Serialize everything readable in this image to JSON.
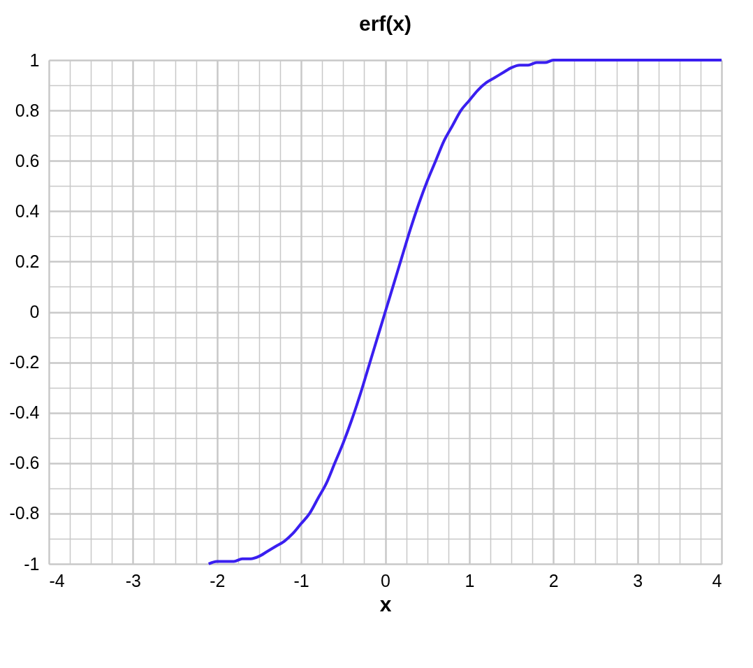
{
  "chart_data": {
    "type": "line",
    "title": "erf(x)",
    "xlabel": "x",
    "x": [
      -2.1,
      -2.0,
      -1.9,
      -1.8,
      -1.7,
      -1.6,
      -1.5,
      -1.4,
      -1.3,
      -1.2,
      -1.1,
      -1.0,
      -0.9,
      -0.8,
      -0.7,
      -0.6,
      -0.5,
      -0.4,
      -0.3,
      -0.2,
      -0.1,
      0,
      0.1,
      0.2,
      0.3,
      0.4,
      0.5,
      0.6,
      0.7,
      0.8,
      0.9,
      1.0,
      1.1,
      1.2,
      1.3,
      1.4,
      1.5,
      1.6,
      1.7,
      1.8,
      1.9,
      2.0,
      2.2,
      2.4,
      2.6,
      3.0,
      3.5,
      4.0
    ],
    "series": [
      {
        "color": "#3a1ff0",
        "values": [
          -1.0,
          -0.99,
          -0.99,
          -0.99,
          -0.98,
          -0.98,
          -0.97,
          -0.95,
          -0.93,
          -0.91,
          -0.88,
          -0.84,
          -0.8,
          -0.74,
          -0.68,
          -0.6,
          -0.52,
          -0.43,
          -0.33,
          -0.22,
          -0.11,
          0,
          0.11,
          0.22,
          0.33,
          0.43,
          0.52,
          0.6,
          0.68,
          0.74,
          0.8,
          0.84,
          0.88,
          0.91,
          0.93,
          0.95,
          0.97,
          0.98,
          0.98,
          0.99,
          0.99,
          1.0,
          1.0,
          1.0,
          1.0,
          1.0,
          1.0,
          1.0
        ]
      }
    ],
    "xlim": [
      -4,
      4
    ],
    "xticks": [
      -4,
      {
        "value": -3.75,
        "label": null
      },
      {
        "value": -3.5,
        "label": null
      },
      {
        "value": -3.25,
        "label": null
      },
      -3,
      {
        "value": -2.75,
        "label": null
      },
      {
        "value": -2.5,
        "label": null
      },
      {
        "value": -2.25,
        "label": null
      },
      -2,
      {
        "value": -1.75,
        "label": null
      },
      {
        "value": -1.5,
        "label": null
      },
      {
        "value": -1.25,
        "label": null
      },
      -1,
      {
        "value": -0.75,
        "label": null
      },
      {
        "value": -0.5,
        "label": null
      },
      {
        "value": -0.25,
        "label": null
      },
      0,
      {
        "value": 0.25,
        "label": null
      },
      {
        "value": 0.5,
        "label": null
      },
      {
        "value": 0.75,
        "label": null
      },
      1,
      {
        "value": 1.25,
        "label": null
      },
      {
        "value": 1.5,
        "label": null
      },
      {
        "value": 1.75,
        "label": null
      },
      2,
      {
        "value": 2.25,
        "label": null
      },
      {
        "value": 2.5,
        "label": null
      },
      {
        "value": 2.75,
        "label": null
      },
      3,
      {
        "value": 3.25,
        "label": null
      },
      {
        "value": 3.5,
        "label": null
      },
      {
        "value": 3.75,
        "label": null
      },
      4
    ],
    "ylim": [
      -1,
      1
    ],
    "yticks": [
      -1,
      {
        "value": -0.9,
        "label": null
      },
      -0.8,
      {
        "value": -0.7,
        "label": null
      },
      -0.6,
      {
        "value": -0.5,
        "label": null
      },
      -0.4,
      {
        "value": -0.3,
        "label": null
      },
      -0.2,
      {
        "value": -0.1,
        "label": null
      },
      0,
      {
        "value": 0.1,
        "label": null
      },
      0.2,
      {
        "value": 0.3,
        "label": null
      },
      0.4,
      {
        "value": 0.5,
        "label": null
      },
      0.6,
      {
        "value": 0.7,
        "label": null
      },
      0.8,
      {
        "value": 0.9,
        "label": null
      },
      1
    ],
    "grid": true,
    "line_style": "solid",
    "marker": "none"
  }
}
